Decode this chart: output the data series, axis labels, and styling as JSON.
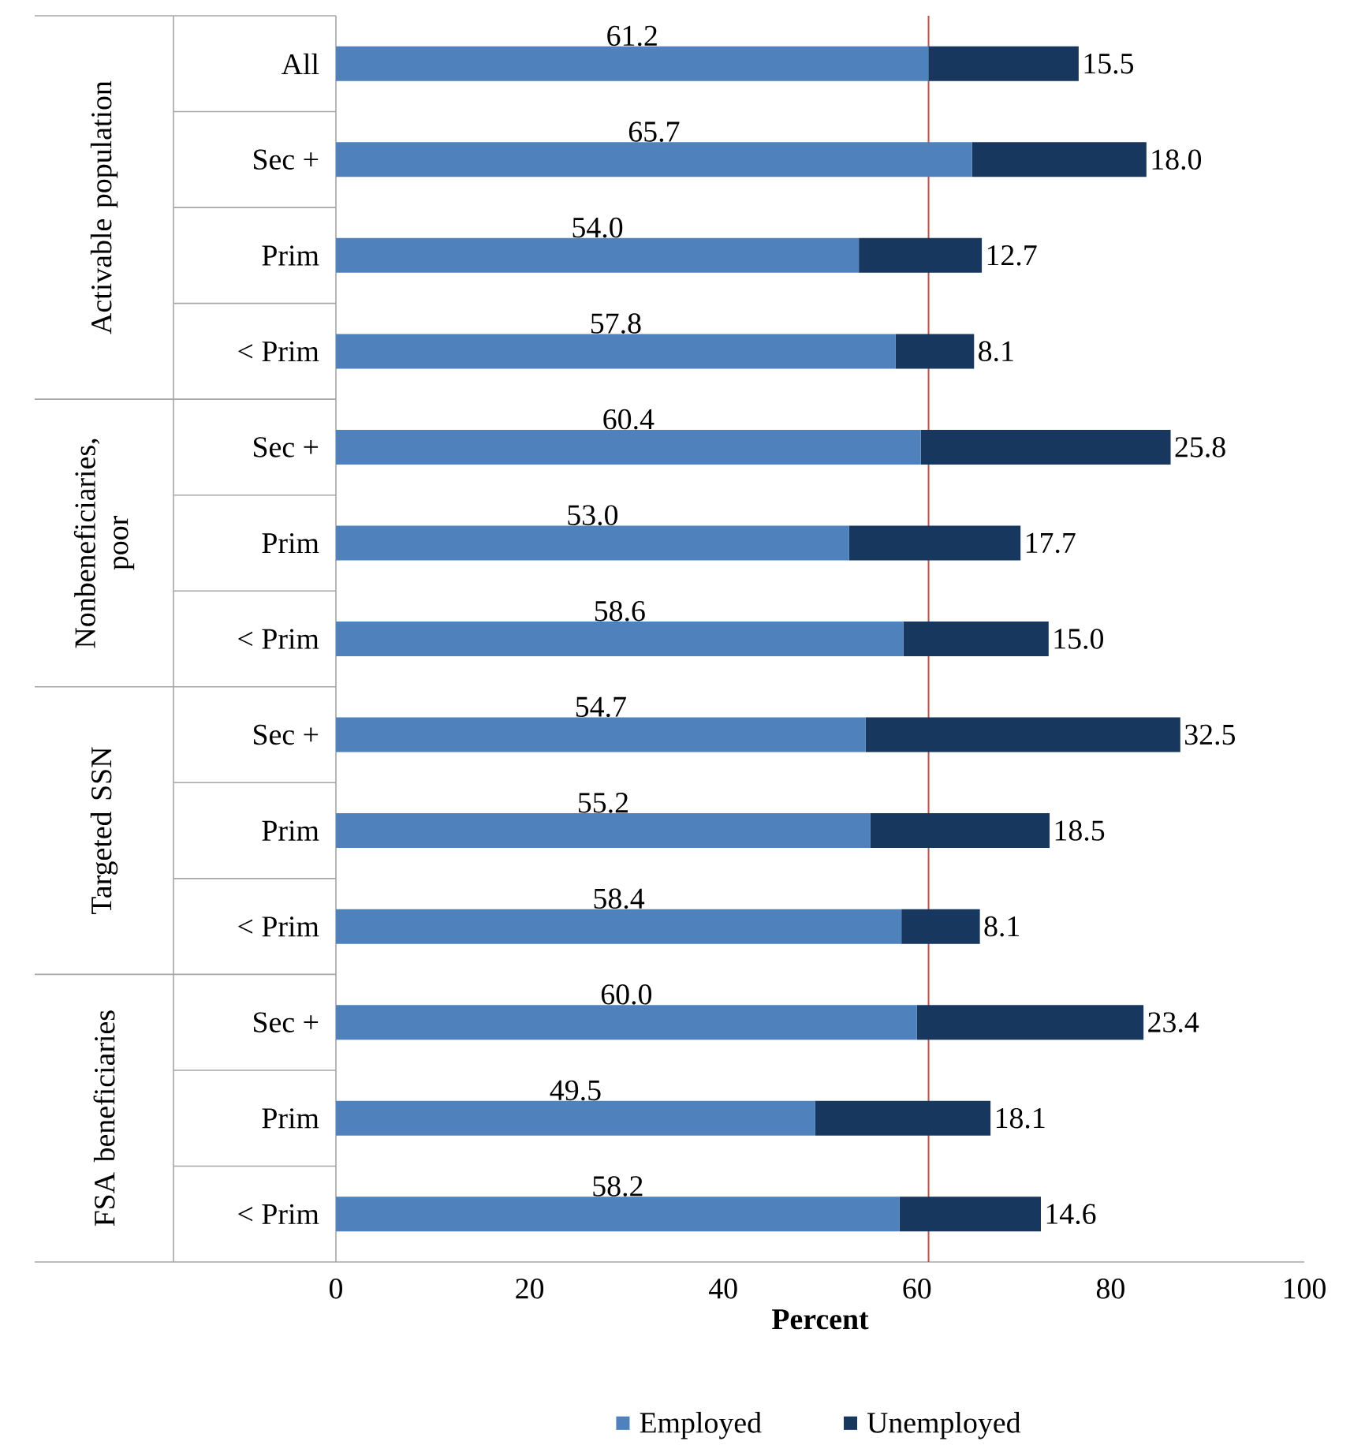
{
  "chart_data": {
    "type": "bar",
    "orientation": "horizontal",
    "stacked": true,
    "xlabel": "Percent",
    "categories": [
      "All",
      "Sec +",
      "Prim",
      "< Prim",
      "Sec +",
      "Prim",
      "< Prim",
      "Sec +",
      "Prim",
      "< Prim",
      "Sec +",
      "Prim",
      "< Prim"
    ],
    "series": [
      {
        "name": "Employed",
        "color": "#4f81bd",
        "values": [
          61.2,
          65.7,
          54.0,
          57.8,
          60.4,
          53.0,
          58.6,
          54.7,
          55.2,
          58.4,
          60.0,
          49.5,
          58.2
        ],
        "value_labels": [
          "61.2",
          "65.7",
          "54.0",
          "57.8",
          "60.4",
          "53.0",
          "58.6",
          "54.7",
          "55.2",
          "58.4",
          "60.0",
          "49.5",
          "58.2"
        ]
      },
      {
        "name": "Unemployed",
        "color": "#17375e",
        "values": [
          15.5,
          18.0,
          12.7,
          8.1,
          25.8,
          17.7,
          15.0,
          32.5,
          18.5,
          8.1,
          23.4,
          18.1,
          14.6
        ],
        "value_labels": [
          "15.5",
          "18.0",
          "12.7",
          "8.1",
          "25.8",
          "17.7",
          "15.0",
          "32.5",
          "18.5",
          "8.1",
          "23.4",
          "18.1",
          "14.6"
        ]
      }
    ],
    "xlim": [
      0,
      100
    ],
    "xticks": [
      0,
      20,
      40,
      60,
      80,
      100
    ],
    "ref_lines": [
      {
        "axis": "x",
        "value": 61.2,
        "color": "#c0504d"
      }
    ],
    "legend": "bottom",
    "grid": false,
    "annotations": [
      "Activable population",
      "Nonbeneficiaries, poor",
      "Targeted SSN",
      "FSA beneficiaries"
    ]
  }
}
